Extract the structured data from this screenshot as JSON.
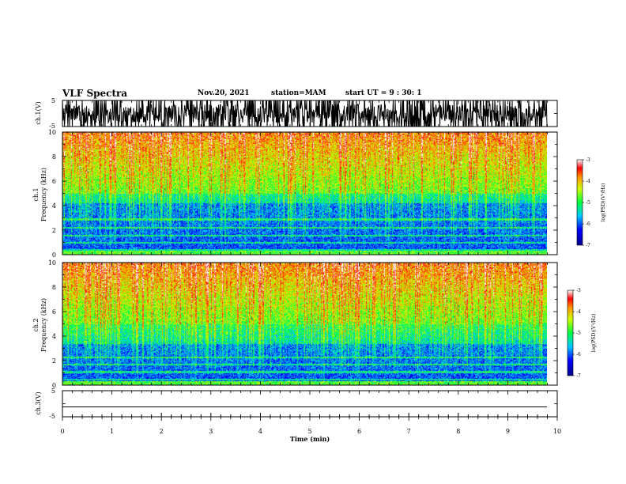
{
  "header": {
    "title": "VLF Spectra",
    "date": "Nov.20, 2021",
    "station": "station=MAM",
    "start_ut": "start UT =  9 : 30: 1"
  },
  "chart_data": [
    {
      "type": "line",
      "panel": "waveform",
      "ylabel": "ch.1(V)",
      "ylim": [
        -5,
        5
      ],
      "ytick_labels": [
        "5",
        "-5"
      ],
      "xlim": [
        0,
        10
      ]
    },
    {
      "type": "heatmap",
      "panel": "spectrogram",
      "ylabel_line1": "ch.1",
      "ylabel_line2": "Frequency (kHz)",
      "ylim": [
        0,
        10
      ],
      "ytick_labels": [
        "0",
        "2",
        "4",
        "6",
        "8",
        "10"
      ],
      "xlim": [
        0,
        10
      ],
      "data_end_min": 9.82,
      "colorbar": {
        "label": "log(PSD)(V²/Hz)",
        "range": [
          -7,
          -3
        ],
        "tick_labels": [
          "-3",
          "-4",
          "-5",
          "-6",
          "-7"
        ]
      }
    },
    {
      "type": "heatmap",
      "panel": "spectrogram",
      "ylabel_line1": "ch.2",
      "ylabel_line2": "Frequency (kHz)",
      "ylim": [
        0,
        10
      ],
      "ytick_labels": [
        "0",
        "2",
        "4",
        "6",
        "8",
        "10"
      ],
      "xlim": [
        0,
        10
      ],
      "data_end_min": 9.82,
      "colorbar": {
        "label": "log(PSD)(V²/Hz)",
        "range": [
          -7,
          -3
        ],
        "tick_labels": [
          "-3",
          "-4",
          "-5",
          "-6",
          "-7"
        ]
      }
    },
    {
      "type": "line",
      "panel": "waveform",
      "ylabel": "ch.3(V)",
      "ylim": [
        -5,
        5
      ],
      "ytick_labels": [
        "5",
        "-5"
      ],
      "xlim": [
        0,
        10
      ],
      "constant_value": -1.2
    }
  ],
  "x_axis": {
    "label": "Time (min)",
    "range": [
      0,
      10
    ],
    "tick_labels": [
      "0",
      "1",
      "2",
      "3",
      "4",
      "5",
      "6",
      "7",
      "8",
      "9",
      "10"
    ]
  },
  "colors": {
    "background": "#ffffff",
    "frame": "#000000"
  }
}
